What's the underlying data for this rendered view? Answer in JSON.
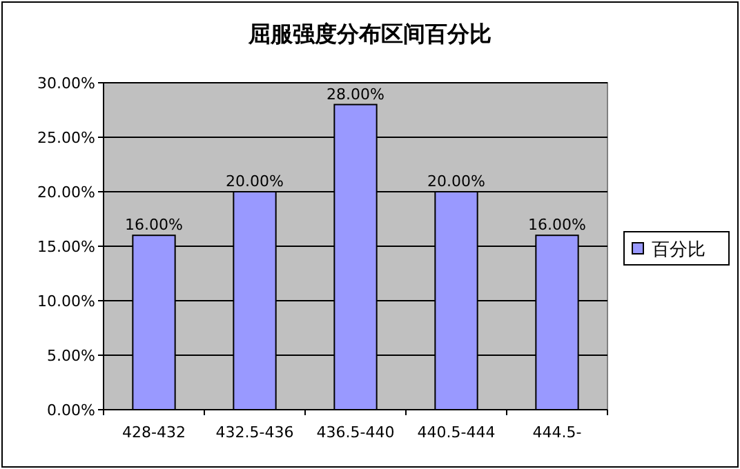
{
  "chart_data": {
    "type": "bar",
    "title": "屈服强度分布区间百分比",
    "categories": [
      "428-432",
      "432.5-436",
      "436.5-440",
      "440.5-444",
      "444.5-"
    ],
    "series": [
      {
        "name": "百分比",
        "color": "#9999ff",
        "values": [
          16,
          20,
          28,
          20,
          16
        ]
      }
    ],
    "value_labels": [
      "16.00%",
      "20.00%",
      "28.00%",
      "20.00%",
      "16.00%"
    ],
    "ylim": [
      0,
      30
    ],
    "yticks": [
      {
        "value": 0,
        "label": "0.00%"
      },
      {
        "value": 5,
        "label": "5.00%"
      },
      {
        "value": 10,
        "label": "10.00%"
      },
      {
        "value": 15,
        "label": "15.00%"
      },
      {
        "value": 20,
        "label": "20.00%"
      },
      {
        "value": 25,
        "label": "25.00%"
      },
      {
        "value": 30,
        "label": "30.00%"
      }
    ],
    "grid": "y",
    "legend": "right"
  }
}
